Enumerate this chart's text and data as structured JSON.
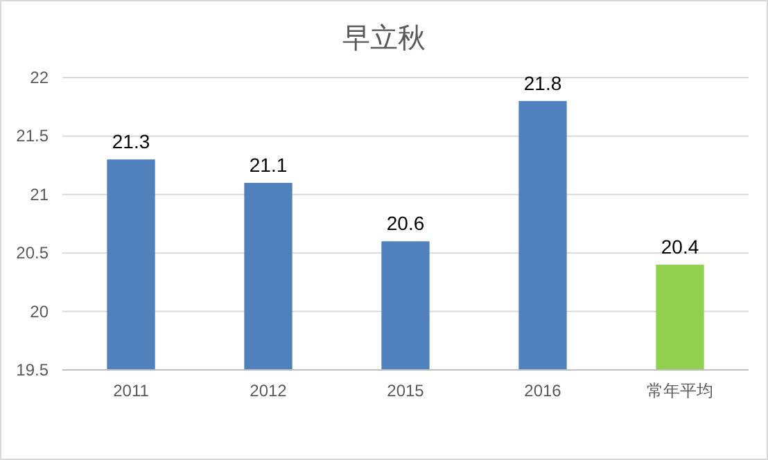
{
  "chart_data": {
    "type": "bar",
    "title": "早立秋",
    "categories": [
      "2011",
      "2012",
      "2015",
      "2016",
      "常年平均"
    ],
    "values": [
      21.3,
      21.1,
      20.6,
      21.8,
      20.4
    ],
    "colors": [
      "#4f81bd",
      "#4f81bd",
      "#4f81bd",
      "#4f81bd",
      "#92d050"
    ],
    "ylim": [
      19.5,
      22
    ],
    "yticks": [
      19.5,
      20,
      20.5,
      21,
      21.5,
      22
    ],
    "grid": "y",
    "data_labels": true
  }
}
